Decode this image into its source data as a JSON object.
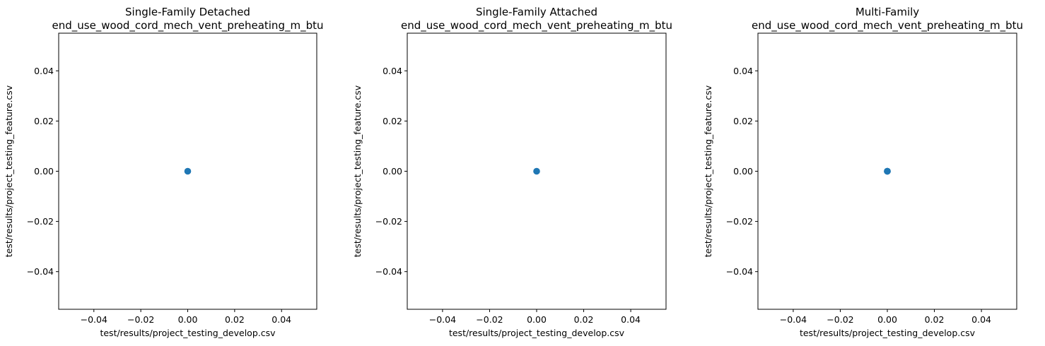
{
  "chart_data": [
    {
      "type": "scatter",
      "title": "Single-Family Detached\nend_use_wood_cord_mech_vent_preheating_m_btu",
      "xlabel": "test/results/project_testing_develop.csv",
      "ylabel": "test/results/project_testing_feature.csv",
      "xlim": [
        -0.055,
        0.055
      ],
      "ylim": [
        -0.055,
        0.055
      ],
      "xticks": [
        -0.04,
        -0.02,
        0.0,
        0.02,
        0.04
      ],
      "yticks": [
        -0.04,
        -0.02,
        0.0,
        0.02,
        0.04
      ],
      "xtick_labels": [
        "−0.04",
        "−0.02",
        "0.00",
        "0.02",
        "0.04"
      ],
      "ytick_labels": [
        "−0.04",
        "−0.02",
        "0.00",
        "0.02",
        "0.04"
      ],
      "grid": false,
      "marker_color": "#1f77b4",
      "points": [
        {
          "x": 0.0,
          "y": 0.0
        }
      ]
    },
    {
      "type": "scatter",
      "title": "Single-Family Attached\nend_use_wood_cord_mech_vent_preheating_m_btu",
      "xlabel": "test/results/project_testing_develop.csv",
      "ylabel": "test/results/project_testing_feature.csv",
      "xlim": [
        -0.055,
        0.055
      ],
      "ylim": [
        -0.055,
        0.055
      ],
      "xticks": [
        -0.04,
        -0.02,
        0.0,
        0.02,
        0.04
      ],
      "yticks": [
        -0.04,
        -0.02,
        0.0,
        0.02,
        0.04
      ],
      "xtick_labels": [
        "−0.04",
        "−0.02",
        "0.00",
        "0.02",
        "0.04"
      ],
      "ytick_labels": [
        "−0.04",
        "−0.02",
        "0.00",
        "0.02",
        "0.04"
      ],
      "grid": false,
      "marker_color": "#1f77b4",
      "points": [
        {
          "x": 0.0,
          "y": 0.0
        }
      ]
    },
    {
      "type": "scatter",
      "title": "Multi-Family\nend_use_wood_cord_mech_vent_preheating_m_btu",
      "xlabel": "test/results/project_testing_develop.csv",
      "ylabel": "test/results/project_testing_feature.csv",
      "xlim": [
        -0.055,
        0.055
      ],
      "ylim": [
        -0.055,
        0.055
      ],
      "xticks": [
        -0.04,
        -0.02,
        0.0,
        0.02,
        0.04
      ],
      "yticks": [
        -0.04,
        -0.02,
        0.0,
        0.02,
        0.04
      ],
      "xtick_labels": [
        "−0.04",
        "−0.02",
        "0.00",
        "0.02",
        "0.04"
      ],
      "ytick_labels": [
        "−0.04",
        "−0.02",
        "0.00",
        "0.02",
        "0.04"
      ],
      "grid": false,
      "marker_color": "#1f77b4",
      "points": [
        {
          "x": 0.0,
          "y": 0.0
        },
        {
          "x": 0.0,
          "y": 0.0
        },
        {
          "x": 0.0,
          "y": 0.0
        }
      ]
    }
  ]
}
